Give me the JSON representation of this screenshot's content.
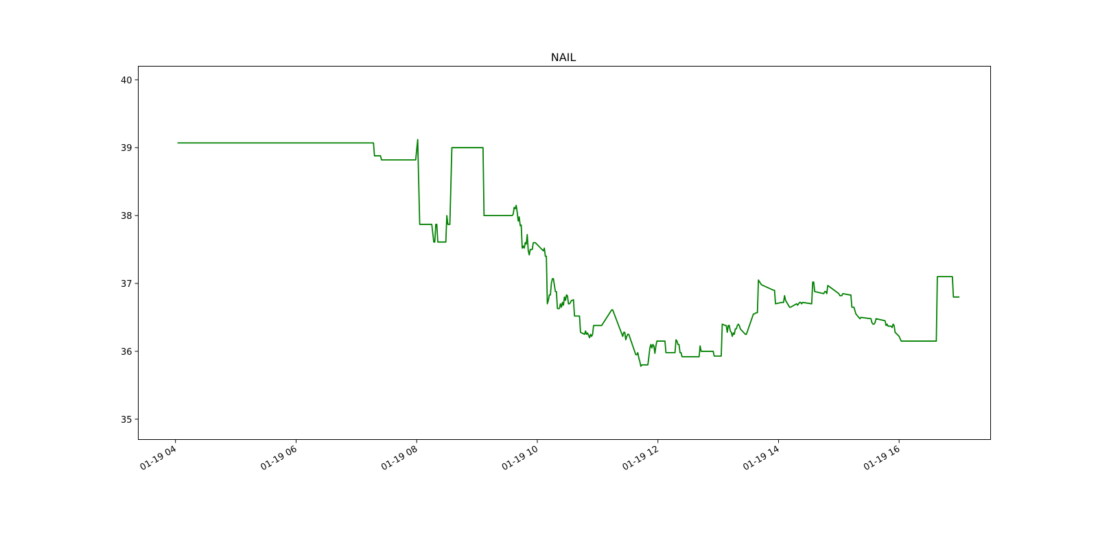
{
  "chart_data": {
    "type": "line",
    "title": "NAIL",
    "xlabel": "",
    "ylabel": "",
    "ylim": [
      34.7,
      40.2
    ],
    "xlim": [
      "01-19 03:23",
      "01-19 17:31"
    ],
    "yticks": [
      35,
      36,
      37,
      38,
      39,
      40
    ],
    "xticks": [
      "01-19 04:00",
      "01-19 06:00",
      "01-19 08:00",
      "01-19 10:00",
      "01-19 12:00",
      "01-19 14:00",
      "01-19 16:00"
    ],
    "xtick_labels": [
      "01-19 04",
      "01-19 06",
      "01-19 08",
      "01-19 10",
      "01-19 12",
      "01-19 14",
      "01-19 16"
    ],
    "grid": false,
    "legend": "none",
    "series": [
      {
        "color": "#008000",
        "x": [
          "01-19 04:02",
          "01-19 07:17",
          "01-19 07:18",
          "01-19 07:24",
          "01-19 07:25",
          "01-19 07:59",
          "01-19 08:01",
          "01-19 08:03",
          "01-19 08:15",
          "01-19 08:17",
          "01-19 08:18",
          "01-19 08:19",
          "01-19 08:20",
          "01-19 08:21",
          "01-19 08:29",
          "01-19 08:30",
          "01-19 08:31",
          "01-19 08:33",
          "01-19 08:35",
          "01-19 09:06",
          "01-19 09:07",
          "01-19 09:35",
          "01-19 09:36",
          "01-19 09:37",
          "01-19 09:38",
          "01-19 09:39",
          "01-19 09:40",
          "01-19 09:41",
          "01-19 09:42",
          "01-19 09:43",
          "01-19 09:44",
          "01-19 09:45",
          "01-19 09:46",
          "01-19 09:47",
          "01-19 09:48",
          "01-19 09:49",
          "01-19 09:50",
          "01-19 09:51",
          "01-19 09:52",
          "01-19 09:53",
          "01-19 09:55",
          "01-19 09:56",
          "01-19 09:58",
          "01-19 10:06",
          "01-19 10:07",
          "01-19 10:08",
          "01-19 10:09",
          "01-19 10:10",
          "01-19 10:11",
          "01-19 10:12",
          "01-19 10:13",
          "01-19 10:14",
          "01-19 10:15",
          "01-19 10:16",
          "01-19 10:18",
          "01-19 10:19",
          "01-19 10:20",
          "01-19 10:22",
          "01-19 10:23",
          "01-19 10:24",
          "01-19 10:25",
          "01-19 10:26",
          "01-19 10:27",
          "01-19 10:28",
          "01-19 10:29",
          "01-19 10:30",
          "01-19 10:31",
          "01-19 10:32",
          "01-19 10:33",
          "01-19 10:34",
          "01-19 10:35",
          "01-19 10:36",
          "01-19 10:37",
          "01-19 10:42",
          "01-19 10:43",
          "01-19 10:47",
          "01-19 10:48",
          "01-19 10:49",
          "01-19 10:50",
          "01-19 10:52",
          "01-19 10:53",
          "01-19 10:54",
          "01-19 10:55",
          "01-19 10:56",
          "01-19 11:03",
          "01-19 11:04",
          "01-19 11:14",
          "01-19 11:15",
          "01-19 11:25",
          "01-19 11:26",
          "01-19 11:27",
          "01-19 11:28",
          "01-19 11:29",
          "01-19 11:30",
          "01-19 11:31",
          "01-19 11:38",
          "01-19 11:39",
          "01-19 11:40",
          "01-19 11:41",
          "01-19 11:42",
          "01-19 11:43",
          "01-19 11:44",
          "01-19 11:50",
          "01-19 11:51",
          "01-19 11:52",
          "01-19 11:53",
          "01-19 11:54",
          "01-19 11:55",
          "01-19 11:56",
          "01-19 11:57",
          "01-19 11:58",
          "01-19 11:59",
          "01-19 12:07",
          "01-19 12:08",
          "01-19 12:17",
          "01-19 12:18",
          "01-19 12:19",
          "01-19 12:20",
          "01-19 12:21",
          "01-19 12:22",
          "01-19 12:23",
          "01-19 12:24",
          "01-19 12:25",
          "01-19 12:41",
          "01-19 12:42",
          "01-19 12:43",
          "01-19 12:55",
          "01-19 12:56",
          "01-19 13:03",
          "01-19 13:04",
          "01-19 13:07",
          "01-19 13:08",
          "01-19 13:09",
          "01-19 13:10",
          "01-19 13:11",
          "01-19 13:12",
          "01-19 13:13",
          "01-19 13:14",
          "01-19 13:15",
          "01-19 13:16",
          "01-19 13:17",
          "01-19 13:18",
          "01-19 13:19",
          "01-19 13:20",
          "01-19 13:21",
          "01-19 13:22",
          "01-19 13:27",
          "01-19 13:28",
          "01-19 13:35",
          "01-19 13:36",
          "01-19 13:38",
          "01-19 13:39",
          "01-19 13:40",
          "01-19 13:43",
          "01-19 13:55",
          "01-19 13:56",
          "01-19 13:57",
          "01-19 14:03",
          "01-19 14:04",
          "01-19 14:05",
          "01-19 14:06",
          "01-19 14:07",
          "01-19 14:11",
          "01-19 14:12",
          "01-19 14:18",
          "01-19 14:19",
          "01-19 14:21",
          "01-19 14:22",
          "01-19 14:23",
          "01-19 14:24",
          "01-19 14:33",
          "01-19 14:34",
          "01-19 14:35",
          "01-19 14:36",
          "01-19 14:45",
          "01-19 14:46",
          "01-19 14:47",
          "01-19 14:48",
          "01-19 14:49",
          "01-19 15:00",
          "01-19 15:01",
          "01-19 15:02",
          "01-19 15:03",
          "01-19 15:04",
          "01-19 15:11",
          "01-19 15:12",
          "01-19 15:13",
          "01-19 15:14",
          "01-19 15:15",
          "01-19 15:16",
          "01-19 15:17",
          "01-19 15:21",
          "01-19 15:22",
          "01-19 15:32",
          "01-19 15:33",
          "01-19 15:34",
          "01-19 15:35",
          "01-19 15:36",
          "01-19 15:37",
          "01-19 15:46",
          "01-19 15:47",
          "01-19 15:48",
          "01-19 15:49",
          "01-19 15:50",
          "01-19 15:51",
          "01-19 15:52",
          "01-19 15:53",
          "01-19 15:54",
          "01-19 15:55",
          "01-19 15:56",
          "01-19 16:00",
          "01-19 16:02",
          "01-19 16:37",
          "01-19 16:38",
          "01-19 16:53",
          "01-19 16:54",
          "01-19 17:00"
        ],
        "y": [
          39.07,
          39.07,
          38.88,
          38.88,
          38.82,
          38.82,
          39.12,
          37.87,
          37.87,
          37.61,
          37.61,
          37.87,
          37.87,
          37.61,
          37.61,
          38.0,
          37.87,
          37.87,
          39.0,
          39.0,
          38.0,
          38.0,
          38.02,
          38.12,
          38.1,
          38.15,
          38.05,
          37.92,
          37.98,
          37.85,
          37.86,
          37.52,
          37.55,
          37.52,
          37.6,
          37.58,
          37.72,
          37.48,
          37.42,
          37.5,
          37.5,
          37.6,
          37.6,
          37.48,
          37.52,
          37.4,
          37.4,
          36.7,
          36.75,
          36.83,
          36.83,
          37.0,
          37.07,
          37.07,
          36.88,
          36.88,
          36.63,
          36.63,
          36.7,
          36.65,
          36.72,
          36.68,
          36.8,
          36.75,
          36.83,
          36.82,
          36.7,
          36.7,
          36.72,
          36.75,
          36.75,
          36.76,
          36.52,
          36.52,
          36.28,
          36.25,
          36.3,
          36.25,
          36.27,
          36.2,
          36.25,
          36.22,
          36.25,
          36.38,
          36.38,
          36.38,
          36.61,
          36.61,
          36.22,
          36.28,
          36.28,
          36.17,
          36.22,
          36.25,
          36.25,
          35.95,
          35.95,
          35.98,
          35.9,
          35.85,
          35.78,
          35.8,
          35.8,
          35.92,
          36.05,
          36.1,
          36.05,
          36.1,
          36.08,
          35.97,
          36.08,
          36.15,
          36.15,
          35.98,
          35.98,
          36.17,
          36.15,
          36.1,
          36.1,
          35.98,
          35.98,
          35.92,
          35.92,
          35.92,
          36.08,
          36.0,
          36.0,
          35.93,
          35.93,
          36.4,
          36.38,
          36.38,
          36.28,
          36.38,
          36.38,
          36.3,
          36.28,
          36.22,
          36.27,
          36.25,
          36.33,
          36.33,
          36.38,
          36.4,
          36.38,
          36.33,
          36.25,
          36.25,
          36.55,
          36.55,
          36.57,
          36.57,
          37.05,
          36.98,
          36.9,
          36.9,
          36.7,
          36.72,
          36.72,
          36.72,
          36.82,
          36.75,
          36.65,
          36.65,
          36.7,
          36.68,
          36.72,
          36.72,
          36.7,
          36.72,
          36.7,
          37.02,
          37.02,
          36.88,
          36.85,
          36.88,
          36.88,
          36.85,
          36.97,
          36.85,
          36.82,
          36.82,
          36.82,
          36.85,
          36.83,
          36.83,
          36.65,
          36.65,
          36.65,
          36.6,
          36.55,
          36.48,
          36.5,
          36.48,
          36.42,
          36.4,
          36.4,
          36.42,
          36.48,
          36.45,
          36.38,
          36.4,
          36.37,
          36.37,
          36.37,
          36.37,
          36.35,
          36.4,
          36.38,
          36.28,
          36.22,
          36.15,
          36.15,
          37.1,
          37.1,
          36.8,
          36.8
        ]
      }
    ]
  }
}
